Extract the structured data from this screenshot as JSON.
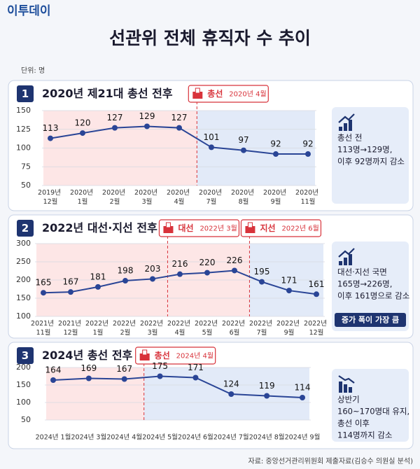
{
  "brand": "이투데이",
  "title": "선관위 전체 휴직자 수 추이",
  "unit": "단위: 명",
  "source": "자료: 중앙선거관리위원회 제출자료(김승수 의원실 분석)",
  "chart_data": [
    {
      "type": "line",
      "number": "1",
      "title": "2020년 제21대 총선 전후",
      "categories": [
        "2019년 12월",
        "2020년 1월",
        "2020년 2월",
        "2020년 3월",
        "2020년 4월",
        "2020년 7월",
        "2020년 8월",
        "2020년 9월",
        "2020년 11월"
      ],
      "values": [
        113,
        120,
        127,
        129,
        127,
        101,
        97,
        92,
        92
      ],
      "color": "#2a4596",
      "ylim": [
        50,
        150
      ],
      "yticks": [
        50,
        75,
        100,
        125,
        150
      ],
      "grid": true,
      "events": [
        {
          "label": "총선",
          "date": "2020년 4월"
        }
      ],
      "note": [
        "총선 전",
        "113명→129명,",
        "이후 92명까지 감소"
      ]
    },
    {
      "type": "line",
      "number": "2",
      "title": "2022년 대선·지선 전후",
      "categories": [
        "2021년 11월",
        "2021년 12월",
        "2022년 1월",
        "2022년 2월",
        "2022년 3월",
        "2022년 4월",
        "2022년 5월",
        "2022년 6월",
        "2022년 7월",
        "2022년 9월",
        "2022년 12월"
      ],
      "values": [
        165,
        167,
        181,
        198,
        203,
        216,
        220,
        226,
        195,
        171,
        161
      ],
      "color": "#2a4596",
      "ylim": [
        100,
        300
      ],
      "yticks": [
        100,
        150,
        200,
        250,
        300
      ],
      "grid": true,
      "events": [
        {
          "label": "대선",
          "date": "2022년 3월"
        },
        {
          "label": "지선",
          "date": "2022년 6월"
        }
      ],
      "note": [
        "대선·지선 국면",
        "165명→226명,",
        "이후 161명으로 감소"
      ],
      "badge": "증가 폭이 가장 큼"
    },
    {
      "type": "line",
      "number": "3",
      "title": "2024년 총선 전후",
      "categories": [
        "2024년 1월",
        "2024년 3월",
        "2024년 4월",
        "2024년 5월",
        "2024년 6월",
        "2024년 7월",
        "2024년 8월",
        "2024년 9월"
      ],
      "values": [
        164,
        169,
        167,
        175,
        171,
        124,
        119,
        114
      ],
      "color": "#2a4596",
      "ylim": [
        50,
        200
      ],
      "yticks": [
        50,
        100,
        150,
        200
      ],
      "grid": true,
      "events": [
        {
          "label": "총선",
          "date": "2024년 4월"
        }
      ],
      "note": [
        "상반기",
        "160~170명대 유지,",
        "총선 이후",
        "114명까지 감소"
      ]
    }
  ]
}
